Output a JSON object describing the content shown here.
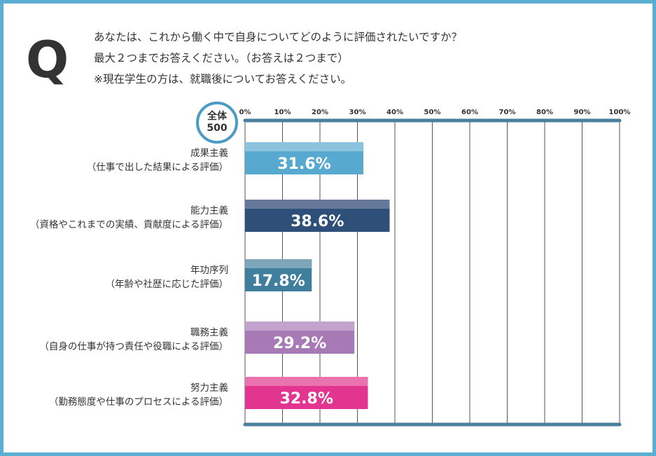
{
  "question": {
    "mark": "Q",
    "lines": [
      "あなたは、これから働く中で自身についてどのように評価されたいですか？",
      "最大２つまでお答えください。（お答えは２つまで）",
      "※現在学生の方は、就職後についてお答えください。"
    ]
  },
  "badge": {
    "label": "全体",
    "n": "500"
  },
  "chart_data": {
    "type": "bar",
    "orientation": "horizontal",
    "xlim": [
      0,
      100
    ],
    "ticks": [
      "0%",
      "10%",
      "20%",
      "30%",
      "40%",
      "50%",
      "60%",
      "70%",
      "80%",
      "90%",
      "100%"
    ],
    "categories": [
      {
        "name": "成果主義",
        "desc": "（仕事で出した結果による評価）"
      },
      {
        "name": "能力主義",
        "desc": "（資格やこれまでの実績、貢献度による評価）"
      },
      {
        "name": "年功序列",
        "desc": "（年齢や社歴に応じた評価）"
      },
      {
        "name": "職務主義",
        "desc": "（自身の仕事が持つ責任や役職による評価）"
      },
      {
        "name": "努力主義",
        "desc": "（勤務態度や仕事のプロセスによる評価）"
      }
    ],
    "values": [
      31.6,
      38.6,
      17.8,
      29.2,
      32.8
    ],
    "value_labels": [
      "31.6%",
      "38.6%",
      "17.8%",
      "29.2%",
      "32.8%"
    ],
    "colors": [
      "#58a9cf",
      "#2e4f78",
      "#3f7e9c",
      "#a77ab5",
      "#e2358f"
    ],
    "light_colors": [
      "#8cc4e0",
      "#66799b",
      "#7ea6ba",
      "#c3a2cd",
      "#ea72ae"
    ],
    "axis_color": "#4a7f9c"
  }
}
